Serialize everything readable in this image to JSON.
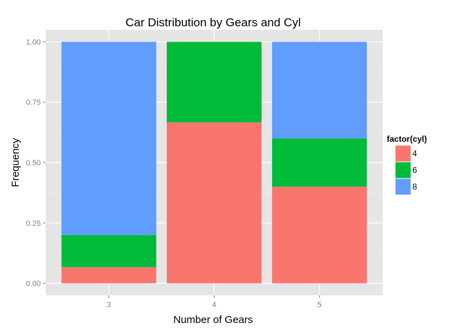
{
  "chart_data": {
    "type": "bar",
    "stacked": true,
    "title": "Car Distribution by Gears and Cyl",
    "xlabel": "Number of Gears",
    "ylabel": "Frequency",
    "categories": [
      "3",
      "4",
      "5"
    ],
    "series": [
      {
        "name": "4",
        "color": "#F8766D",
        "values": [
          0.0667,
          0.6667,
          0.4
        ]
      },
      {
        "name": "6",
        "color": "#00BA38",
        "values": [
          0.1333,
          0.3333,
          0.2
        ]
      },
      {
        "name": "8",
        "color": "#619CFF",
        "values": [
          0.8,
          0.0,
          0.4
        ]
      }
    ],
    "yticks": [
      0.0,
      0.25,
      0.5,
      0.75,
      1.0
    ],
    "ytick_labels": [
      "0.00",
      "0.25",
      "0.50",
      "0.75",
      "1.00"
    ],
    "ylim": [
      -0.05,
      1.05
    ],
    "grid": true,
    "panel_background": "#E5E5E5",
    "legend": {
      "title": "factor(cyl)",
      "placement": "right"
    }
  }
}
